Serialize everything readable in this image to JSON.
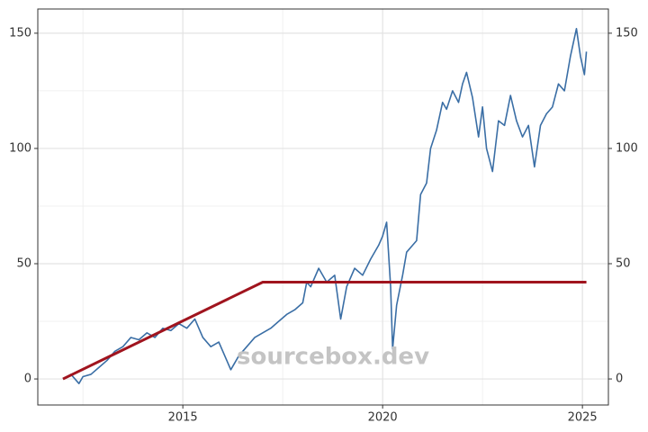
{
  "chart_data": {
    "type": "line",
    "annotation": "sourcebox.dev",
    "xlim": [
      2011.37,
      2025.65
    ],
    "xticks": [
      2015,
      2020,
      2025
    ],
    "minor_xticks": [
      2012.5,
      2017.5,
      2022.5
    ],
    "ylim": [
      -11.3,
      160.5
    ],
    "yticks": [
      0,
      50,
      100,
      150
    ],
    "minor_yticks": [
      25,
      75,
      125
    ],
    "y2lim": [
      -11.3,
      160.5
    ],
    "y2ticks": [
      0,
      50,
      100,
      150
    ],
    "grid": true,
    "series": [
      {
        "color": "#3a6ea5",
        "x": [
          2012.0,
          2012.2,
          2012.4,
          2012.5,
          2012.7,
          2012.9,
          2013.1,
          2013.3,
          2013.5,
          2013.7,
          2013.9,
          2014.1,
          2014.3,
          2014.5,
          2014.7,
          2014.9,
          2015.1,
          2015.3,
          2015.5,
          2015.7,
          2015.9,
          2016.0,
          2016.1,
          2016.2,
          2016.4,
          2016.6,
          2016.8,
          2017.0,
          2017.2,
          2017.4,
          2017.6,
          2017.8,
          2018.0,
          2018.1,
          2018.2,
          2018.4,
          2018.6,
          2018.8,
          2018.95,
          2019.1,
          2019.3,
          2019.5,
          2019.7,
          2019.9,
          2020.0,
          2020.1,
          2020.2,
          2020.25,
          2020.35,
          2020.5,
          2020.6,
          2020.75,
          2020.85,
          2020.95,
          2021.1,
          2021.2,
          2021.35,
          2021.5,
          2021.6,
          2021.75,
          2021.9,
          2022.0,
          2022.1,
          2022.25,
          2022.4,
          2022.5,
          2022.6,
          2022.75,
          2022.9,
          2023.05,
          2023.2,
          2023.35,
          2023.5,
          2023.65,
          2023.8,
          2023.95,
          2024.1,
          2024.25,
          2024.4,
          2024.55,
          2024.7,
          2024.85,
          2024.95,
          2025.05,
          2025.1
        ],
        "values": [
          0,
          2,
          -2,
          1,
          2,
          5,
          8,
          12,
          14,
          18,
          17,
          20,
          18,
          22,
          21,
          24,
          22,
          26,
          18,
          14,
          16,
          12,
          8,
          4,
          10,
          14,
          18,
          20,
          22,
          25,
          28,
          30,
          33,
          42,
          40,
          48,
          42,
          45,
          26,
          40,
          48,
          45,
          52,
          58,
          62,
          68,
          40,
          13,
          32,
          45,
          55,
          58,
          60,
          80,
          85,
          100,
          108,
          120,
          117,
          125,
          120,
          128,
          133,
          122,
          105,
          118,
          100,
          90,
          112,
          110,
          123,
          112,
          105,
          110,
          92,
          110,
          115,
          118,
          128,
          125,
          140,
          152,
          140,
          132,
          142
        ]
      },
      {
        "color": "#a0141e",
        "x": [
          2012.0,
          2017.0,
          2025.1
        ],
        "values": [
          0,
          42,
          42
        ]
      }
    ]
  }
}
